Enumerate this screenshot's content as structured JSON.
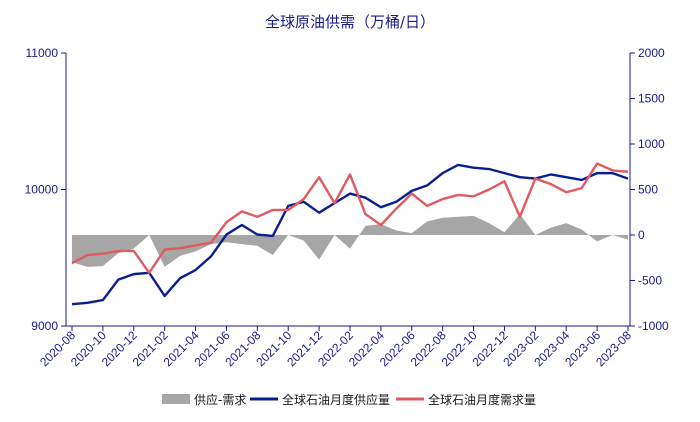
{
  "chart_data": {
    "type": "line",
    "title": "全球原油供需（万桶/日）",
    "categories": [
      "2020-08",
      "2020-09",
      "2020-10",
      "2020-11",
      "2020-12",
      "2021-01",
      "2021-02",
      "2021-03",
      "2021-04",
      "2021-05",
      "2021-06",
      "2021-07",
      "2021-08",
      "2021-09",
      "2021-10",
      "2021-11",
      "2021-12",
      "2022-01",
      "2022-02",
      "2022-03",
      "2022-04",
      "2022-05",
      "2022-06",
      "2022-07",
      "2022-08",
      "2022-09",
      "2022-10",
      "2022-11",
      "2022-12",
      "2023-01",
      "2023-02",
      "2023-03",
      "2023-04",
      "2023-05",
      "2023-06",
      "2023-07",
      "2023-08"
    ],
    "xtick_labels": [
      "2020-08",
      "2020-10",
      "2020-12",
      "2021-02",
      "2021-04",
      "2021-06",
      "2021-08",
      "2021-10",
      "2021-12",
      "2022-02",
      "2022-04",
      "2022-06",
      "2022-08",
      "2022-10",
      "2022-12",
      "2023-02",
      "2023-04",
      "2023-06",
      "2023-08"
    ],
    "left_axis": {
      "ylim": [
        9000,
        11000
      ],
      "ticks": [
        9000,
        10000,
        11000
      ]
    },
    "right_axis": {
      "ylim": [
        -1000,
        2000
      ],
      "ticks": [
        -1000,
        -500,
        0,
        500,
        1000,
        1500,
        2000
      ]
    },
    "grid": false,
    "legend_position": "bottom",
    "series": [
      {
        "name": "供应-需求",
        "kind": "area",
        "axis": "right",
        "color": "#a6a6a6",
        "values": [
          -300,
          -350,
          -340,
          -200,
          -150,
          0,
          -350,
          -230,
          -180,
          -100,
          -80,
          -100,
          -120,
          -220,
          0,
          -60,
          -270,
          0,
          -150,
          100,
          120,
          50,
          20,
          150,
          190,
          200,
          210,
          130,
          30,
          230,
          0,
          80,
          130,
          60,
          -70,
          0,
          -50
        ]
      },
      {
        "name": "全球石油月度供应量",
        "kind": "line",
        "axis": "left",
        "color": "#0a1f8f",
        "values": [
          9160,
          9170,
          9190,
          9340,
          9380,
          9390,
          9220,
          9350,
          9410,
          9510,
          9670,
          9740,
          9670,
          9660,
          9880,
          9910,
          9830,
          9900,
          9970,
          9940,
          9870,
          9910,
          9990,
          10030,
          10120,
          10180,
          10160,
          10150,
          10120,
          10090,
          10080,
          10110,
          10090,
          10070,
          10120,
          10120,
          10080
        ]
      },
      {
        "name": "全球石油月度需求量",
        "kind": "line",
        "axis": "left",
        "color": "#e05a5f",
        "values": [
          9460,
          9520,
          9530,
          9550,
          9550,
          9390,
          9560,
          9570,
          9590,
          9610,
          9760,
          9840,
          9800,
          9850,
          9850,
          9930,
          10090,
          9900,
          10110,
          9820,
          9740,
          9860,
          9970,
          9880,
          9930,
          9960,
          9950,
          10000,
          10060,
          9800,
          10080,
          10040,
          9980,
          10010,
          10190,
          10140,
          10130
        ]
      }
    ]
  }
}
